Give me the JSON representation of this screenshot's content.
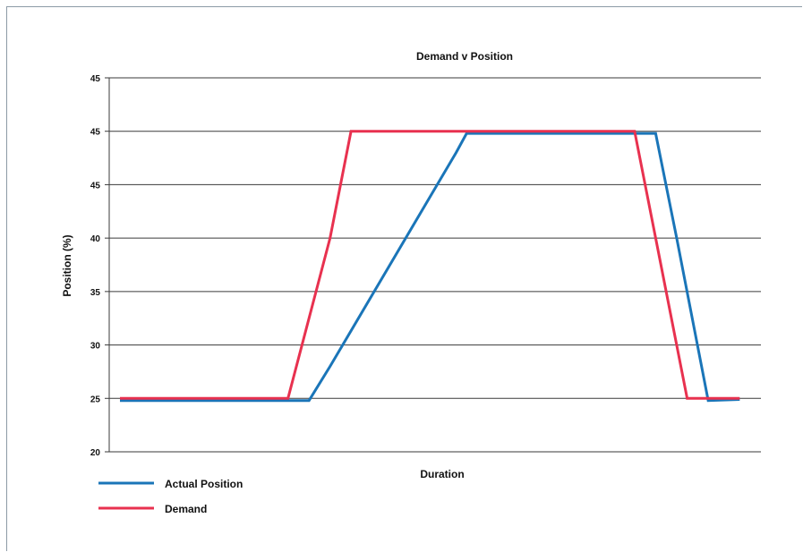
{
  "chart_data": {
    "type": "line",
    "title": "Demand v Position",
    "xlabel": "Duration",
    "ylabel": "Position (%)",
    "y_ticks": [
      "20",
      "25",
      "30",
      "35",
      "40",
      "45",
      "45",
      "45"
    ],
    "ylim": [
      20,
      55
    ],
    "xlim": [
      0,
      30
    ],
    "grid": "horizontal",
    "legend_position": "bottom-left",
    "series": [
      {
        "name": "Actual Position",
        "color": "#1a75b8",
        "x": [
          0,
          9,
          10,
          16,
          16.5,
          25,
          25.5,
          26.5,
          28,
          29.5
        ],
        "y": [
          24.8,
          24.8,
          28,
          48,
          49.8,
          49.8,
          49.8,
          40,
          24.8,
          24.9
        ]
      },
      {
        "name": "Demand",
        "color": "#e8314f",
        "x": [
          0,
          8,
          10,
          11,
          24.5,
          25.5,
          27,
          29.5
        ],
        "y": [
          25,
          25,
          40,
          50,
          50,
          40,
          25,
          25
        ]
      }
    ]
  }
}
